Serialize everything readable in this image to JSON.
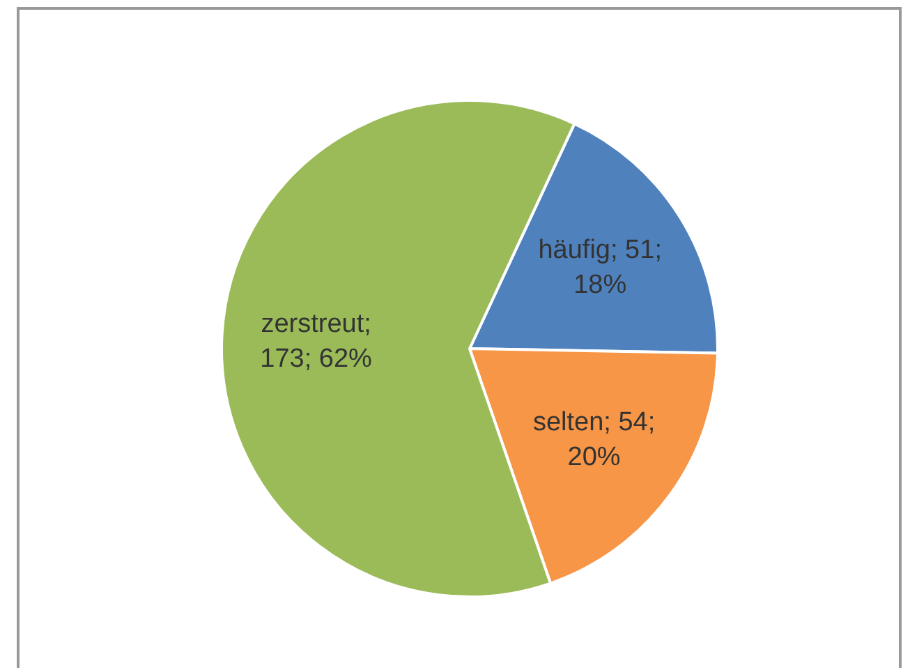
{
  "chart_data": {
    "type": "pie",
    "categories": [
      "häufig; 51; 18%",
      "selten; 54; 20%",
      "zerstreut; 173; 62%"
    ],
    "values": [
      51,
      54,
      173
    ],
    "colors": [
      "#4f81bd",
      "#f79646",
      "#9bbb59"
    ]
  }
}
